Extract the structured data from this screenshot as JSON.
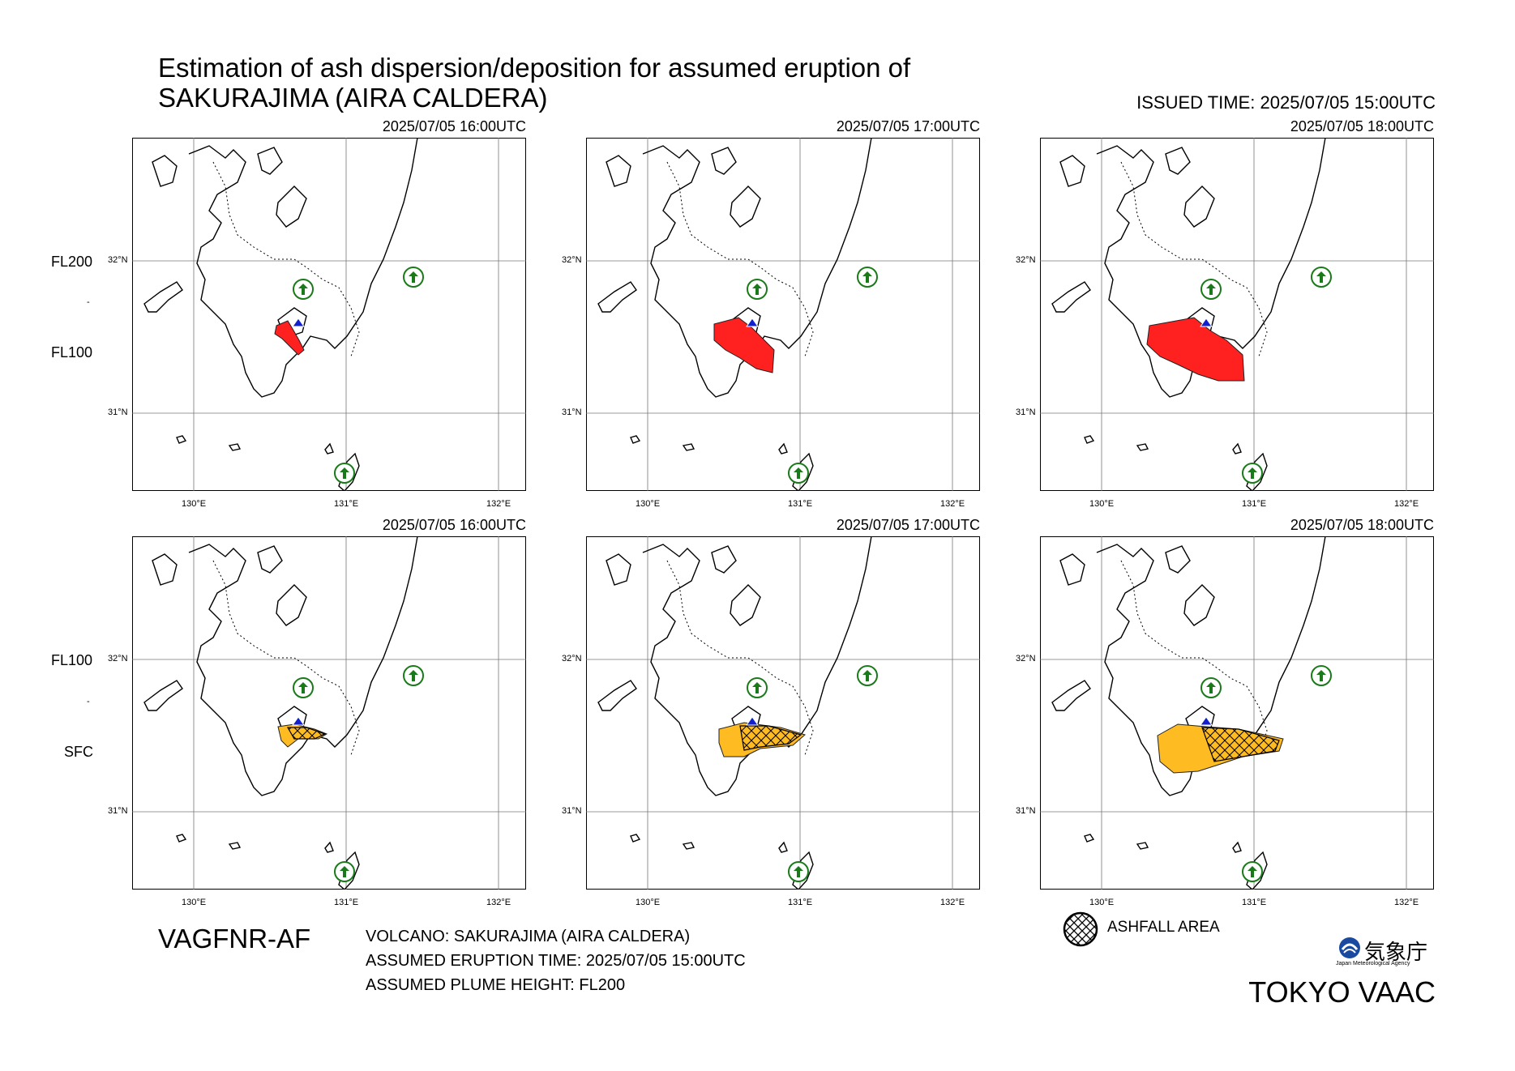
{
  "title": {
    "line1": "Estimation of ash dispersion/deposition for assumed eruption of",
    "line2": "SAKURAJIMA (AIRA CALDERA)"
  },
  "issued_time": "ISSUED TIME: 2025/07/05 15:00UTC",
  "rows": [
    {
      "upper_level": "FL200",
      "lower_level": "FL100",
      "separator": "-",
      "fill_color": "#ff2020",
      "times": [
        "2025/07/05 16:00UTC",
        "2025/07/05 17:00UTC",
        "2025/07/05 18:00UTC"
      ]
    },
    {
      "upper_level": "FL100",
      "lower_level": "SFC",
      "separator": "-",
      "fill_color": "#ffbb22",
      "times": [
        "2025/07/05 16:00UTC",
        "2025/07/05 17:00UTC",
        "2025/07/05 18:00UTC"
      ]
    }
  ],
  "axes": {
    "lat_labels": [
      "32°N",
      "31°N"
    ],
    "lon_labels": [
      "130°E",
      "131°E",
      "132°E"
    ]
  },
  "footer": {
    "product_code": "VAGFNR-AF",
    "volcano": "VOLCANO: SAKURAJIMA (AIRA CALDERA)",
    "eruption_time": "ASSUMED ERUPTION TIME: 2025/07/05 15:00UTC",
    "plume_height": "ASSUMED PLUME HEIGHT: FL200",
    "legend_ashfall": "ASHFALL AREA",
    "agency_jp": "気象庁",
    "agency_en": "Japan Meteorological Agency",
    "vaac": "TOKYO VAAC"
  },
  "icons": {
    "volcano": "volcano-triangle-icon",
    "airport": "airport-circle-icon"
  },
  "colors": {
    "plume_upper": "#ff2020",
    "plume_lower": "#ffbb22",
    "volcano": "#1020d0",
    "airport": "#1a7a1a"
  }
}
